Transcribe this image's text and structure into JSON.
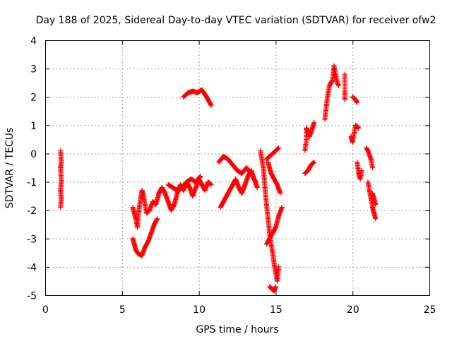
{
  "chart_data": {
    "type": "scatter",
    "title": "Day 188 of 2025, Sidereal Day-to-day VTEC variation (SDTVAR) for receiver ofw2",
    "xlabel": "GPS time / hours",
    "ylabel": "SDTVAR / TECUs",
    "xlim": [
      0,
      25
    ],
    "ylim": [
      -5,
      4
    ],
    "xticks": [
      "0",
      "5",
      "10",
      "15",
      "20",
      "25"
    ],
    "yticks": [
      "-5",
      "-4",
      "-3",
      "-2",
      "-1",
      "0",
      "1",
      "2",
      "3",
      "4"
    ],
    "grid": true,
    "marker": "+",
    "color": "#ff0000",
    "segments": [
      [
        [
          1.0,
          0.1
        ],
        [
          1.05,
          -0.3
        ],
        [
          1.0,
          -0.5
        ],
        [
          1.05,
          -1.0
        ],
        [
          1.0,
          -1.3
        ],
        [
          1.05,
          -1.6
        ],
        [
          1.0,
          -1.9
        ]
      ],
      [
        [
          9.0,
          2.0
        ],
        [
          9.3,
          2.15
        ],
        [
          9.6,
          2.2
        ],
        [
          9.9,
          2.15
        ],
        [
          10.2,
          2.25
        ],
        [
          10.5,
          2.0
        ],
        [
          10.8,
          1.7
        ]
      ],
      [
        [
          5.7,
          -1.9
        ],
        [
          5.9,
          -2.3
        ],
        [
          6.0,
          -2.6
        ],
        [
          6.1,
          -2.0
        ],
        [
          6.2,
          -1.6
        ],
        [
          6.3,
          -1.3
        ],
        [
          6.4,
          -1.5
        ],
        [
          6.5,
          -1.8
        ],
        [
          6.6,
          -2.1
        ],
        [
          6.8,
          -2.0
        ],
        [
          7.0,
          -1.7
        ],
        [
          7.2,
          -1.8
        ],
        [
          7.4,
          -1.4
        ],
        [
          7.6,
          -1.2
        ],
        [
          7.8,
          -1.4
        ],
        [
          8.0,
          -1.7
        ],
        [
          8.2,
          -2.0
        ],
        [
          8.4,
          -1.8
        ],
        [
          8.6,
          -1.4
        ],
        [
          8.8,
          -1.1
        ],
        [
          9.0,
          -1.3
        ],
        [
          9.2,
          -1.0
        ],
        [
          9.4,
          -1.2
        ],
        [
          9.6,
          -1.5
        ],
        [
          9.8,
          -1.2
        ],
        [
          10.0,
          -0.9
        ],
        [
          10.2,
          -1.1
        ],
        [
          10.4,
          -1.3
        ],
        [
          10.6,
          -1.0
        ],
        [
          10.8,
          -1.1
        ]
      ],
      [
        [
          8.0,
          -1.1
        ],
        [
          8.3,
          -1.2
        ],
        [
          8.6,
          -1.3
        ],
        [
          8.9,
          -1.2
        ],
        [
          9.2,
          -1.0
        ],
        [
          9.5,
          -0.9
        ],
        [
          9.8,
          -1.0
        ],
        [
          10.1,
          -0.8
        ]
      ],
      [
        [
          5.7,
          -3.0
        ],
        [
          5.8,
          -3.2
        ],
        [
          5.9,
          -3.4
        ],
        [
          6.0,
          -3.5
        ],
        [
          6.1,
          -3.55
        ],
        [
          6.3,
          -3.6
        ],
        [
          6.5,
          -3.3
        ],
        [
          6.7,
          -3.1
        ],
        [
          6.9,
          -2.8
        ],
        [
          7.1,
          -2.5
        ],
        [
          7.3,
          -2.3
        ]
      ],
      [
        [
          11.4,
          -1.9
        ],
        [
          11.6,
          -1.7
        ],
        [
          11.8,
          -1.5
        ],
        [
          12.0,
          -1.3
        ],
        [
          12.2,
          -1.1
        ],
        [
          12.4,
          -0.9
        ],
        [
          12.6,
          -1.2
        ],
        [
          12.8,
          -1.4
        ],
        [
          13.0,
          -1.1
        ],
        [
          13.2,
          -0.8
        ],
        [
          13.4,
          -0.6
        ],
        [
          13.6,
          -0.9
        ],
        [
          13.8,
          -1.2
        ]
      ],
      [
        [
          11.3,
          -0.3
        ],
        [
          11.6,
          -0.1
        ],
        [
          11.9,
          -0.2
        ],
        [
          12.2,
          -0.4
        ],
        [
          12.5,
          -0.6
        ],
        [
          12.8,
          -0.7
        ],
        [
          13.1,
          -0.5
        ],
        [
          13.4,
          -0.7
        ],
        [
          13.7,
          -1.0
        ]
      ],
      [
        [
          14.0,
          0.1
        ],
        [
          14.2,
          -0.5
        ],
        [
          14.3,
          -1.2
        ],
        [
          14.4,
          -1.8
        ],
        [
          14.5,
          -2.3
        ],
        [
          14.6,
          -2.8
        ],
        [
          14.7,
          -3.2
        ],
        [
          14.8,
          -3.5
        ],
        [
          14.9,
          -3.9
        ],
        [
          15.0,
          -4.2
        ],
        [
          15.1,
          -4.5
        ],
        [
          15.2,
          -4.0
        ]
      ],
      [
        [
          14.5,
          -0.3
        ],
        [
          14.6,
          -0.5
        ],
        [
          14.7,
          -0.7
        ],
        [
          14.9,
          -0.9
        ],
        [
          15.1,
          -1.1
        ],
        [
          15.3,
          -1.4
        ]
      ],
      [
        [
          15.4,
          -1.9
        ],
        [
          15.2,
          -2.2
        ],
        [
          15.0,
          -2.6
        ],
        [
          14.8,
          -2.8
        ],
        [
          14.6,
          -3.0
        ],
        [
          14.4,
          -3.2
        ]
      ],
      [
        [
          14.6,
          -4.7
        ],
        [
          14.8,
          -4.8
        ],
        [
          14.9,
          -4.85
        ],
        [
          15.0,
          -4.7
        ]
      ],
      [
        [
          14.4,
          -0.2
        ],
        [
          14.6,
          -0.1
        ],
        [
          14.8,
          0.0
        ],
        [
          15.0,
          0.1
        ],
        [
          15.2,
          0.2
        ]
      ],
      [
        [
          16.9,
          0.1
        ],
        [
          17.0,
          0.5
        ],
        [
          17.0,
          0.9
        ],
        [
          17.2,
          0.6
        ],
        [
          17.4,
          0.9
        ],
        [
          17.5,
          1.1
        ]
      ],
      [
        [
          16.9,
          -0.7
        ],
        [
          17.1,
          -0.6
        ],
        [
          17.3,
          -0.4
        ],
        [
          17.5,
          -0.3
        ]
      ],
      [
        [
          18.2,
          1.2
        ],
        [
          18.3,
          1.7
        ],
        [
          18.4,
          2.1
        ],
        [
          18.5,
          2.4
        ],
        [
          18.6,
          2.5
        ],
        [
          18.7,
          2.6
        ],
        [
          18.8,
          3.1
        ],
        [
          18.9,
          2.8
        ],
        [
          19.0,
          2.5
        ],
        [
          19.1,
          2.4
        ]
      ],
      [
        [
          19.5,
          2.8
        ],
        [
          19.5,
          2.2
        ],
        [
          19.5,
          1.9
        ]
      ],
      [
        [
          20.0,
          2.0
        ],
        [
          20.2,
          1.9
        ],
        [
          20.3,
          1.8
        ]
      ],
      [
        [
          19.9,
          0.6
        ],
        [
          20.0,
          0.4
        ],
        [
          20.2,
          1.0
        ],
        [
          20.4,
          0.9
        ]
      ],
      [
        [
          20.3,
          -0.3
        ],
        [
          20.4,
          -0.7
        ],
        [
          20.5,
          -0.9
        ],
        [
          20.6,
          -0.6
        ]
      ],
      [
        [
          20.9,
          0.2
        ],
        [
          21.0,
          0.1
        ],
        [
          21.2,
          -0.2
        ],
        [
          21.3,
          -0.5
        ]
      ],
      [
        [
          21.0,
          -1.0
        ],
        [
          21.1,
          -1.3
        ],
        [
          21.2,
          -1.6
        ],
        [
          21.3,
          -1.9
        ],
        [
          21.4,
          -2.1
        ],
        [
          21.5,
          -2.3
        ]
      ],
      [
        [
          21.3,
          -1.4
        ],
        [
          21.4,
          -1.6
        ],
        [
          21.5,
          -1.8
        ]
      ]
    ]
  }
}
